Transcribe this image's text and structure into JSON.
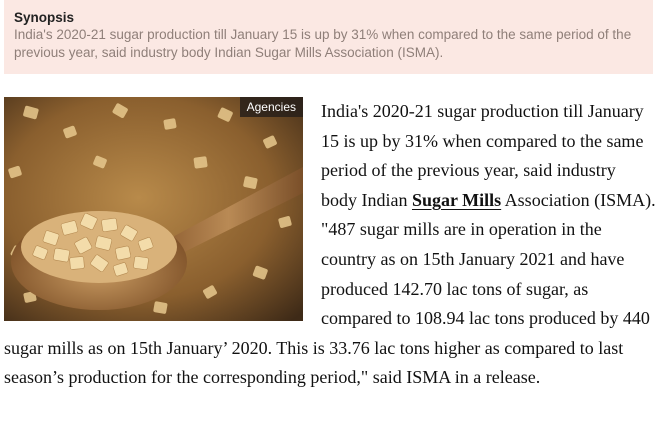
{
  "synopsis": {
    "title": "Synopsis",
    "text": "India's 2020-21 sugar production till January 15 is up by 31% when compared to the same period of the previous year, said industry body Indian Sugar Mills Association (ISMA)."
  },
  "photo": {
    "credit": "Agencies",
    "icon": "sugar-spoon-photo"
  },
  "article": {
    "text_before_link": "India's 2020-21 sugar production till January 15 is up by 31% when compared to the same period of the previous year, said industry body Indian ",
    "link_text": "Sugar Mills",
    "text_after_link": " Association (ISMA). \"487 sugar mills are in operation in the country as on 15th January 2021 and have produced 142.70 lac tons of sugar, as compared to 108.94 lac tons produced by 440 sugar mills as on 15th January’ 2020. This is 33.76 lac tons higher as compared to last season’s production for the corresponding period,\" said ISMA in a release."
  },
  "colors": {
    "synopsis_background": "#fbe8e3",
    "synopsis_text": "#8f7f79",
    "credit_background": "#28201a"
  }
}
